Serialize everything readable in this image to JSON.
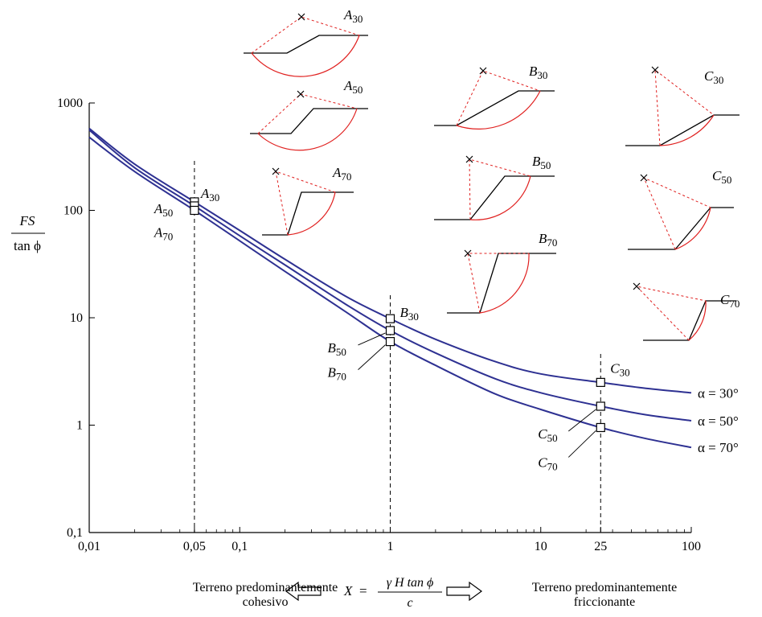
{
  "chart_data": {
    "type": "line",
    "x_scale": "log",
    "y_scale": "log",
    "xlim": [
      0.01,
      100
    ],
    "ylim": [
      0.1,
      1000
    ],
    "x_ticks": [
      0.01,
      0.05,
      0.1,
      1,
      10,
      25,
      100
    ],
    "x_tick_labels": [
      "0,01",
      "0,05",
      "0,1",
      "1",
      "10",
      "25",
      "100"
    ],
    "y_ticks": [
      0.1,
      1,
      10,
      100,
      1000
    ],
    "y_tick_labels": [
      "0,1",
      "1",
      "10",
      "100",
      "1000"
    ],
    "ylabel": {
      "numerator": "FS",
      "denominator": "tan ϕ"
    },
    "xlabel": {
      "lhs": "X",
      "numerator": "γ H tan ϕ",
      "denominator": "c"
    },
    "grid": false,
    "reference_lines_x": [
      0.05,
      1,
      25
    ],
    "series": [
      {
        "name": "α = 30°",
        "x": [
          0.01,
          0.02,
          0.05,
          0.1,
          0.2,
          0.5,
          1,
          2,
          5,
          10,
          25,
          50,
          100
        ],
        "values": [
          580,
          270,
          120,
          65,
          35,
          16,
          9.8,
          6.3,
          3.9,
          3.0,
          2.5,
          2.2,
          2.0
        ]
      },
      {
        "name": "α = 50°",
        "x": [
          0.01,
          0.02,
          0.05,
          0.1,
          0.2,
          0.5,
          1,
          2,
          5,
          10,
          25,
          50,
          100
        ],
        "values": [
          560,
          250,
          110,
          58,
          31,
          13.5,
          7.6,
          4.7,
          2.7,
          2.0,
          1.5,
          1.25,
          1.1
        ]
      },
      {
        "name": "α = 70°",
        "x": [
          0.01,
          0.02,
          0.05,
          0.1,
          0.2,
          0.5,
          1,
          2,
          5,
          10,
          25,
          50,
          100
        ],
        "values": [
          480,
          230,
          100,
          52,
          27,
          11.5,
          6.0,
          3.6,
          1.95,
          1.4,
          0.95,
          0.75,
          0.62
        ]
      }
    ],
    "markers": [
      {
        "label": "A",
        "sub": "30",
        "x": 0.05,
        "y": 120
      },
      {
        "label": "A",
        "sub": "50",
        "x": 0.05,
        "y": 110
      },
      {
        "label": "A",
        "sub": "70",
        "x": 0.05,
        "y": 100
      },
      {
        "label": "B",
        "sub": "30",
        "x": 1,
        "y": 9.8
      },
      {
        "label": "B",
        "sub": "50",
        "x": 1,
        "y": 7.6
      },
      {
        "label": "B",
        "sub": "70",
        "x": 1,
        "y": 6.0
      },
      {
        "label": "C",
        "sub": "30",
        "x": 25,
        "y": 2.5
      },
      {
        "label": "C",
        "sub": "50",
        "x": 25,
        "y": 1.5
      },
      {
        "label": "C",
        "sub": "70",
        "x": 25,
        "y": 0.95
      }
    ],
    "slope_sketches": [
      "A30",
      "A50",
      "A70",
      "B30",
      "B50",
      "B70",
      "C30",
      "C50",
      "C70"
    ]
  },
  "footer": {
    "left_line1": "Terreno predominantemente",
    "left_line2": "cohesivo",
    "right_line1": "Terreno predominantemente",
    "right_line2": "friccionante"
  },
  "colors": {
    "series": "#2e3192",
    "slip_circle": "#e0201f",
    "ground": "#000000"
  }
}
